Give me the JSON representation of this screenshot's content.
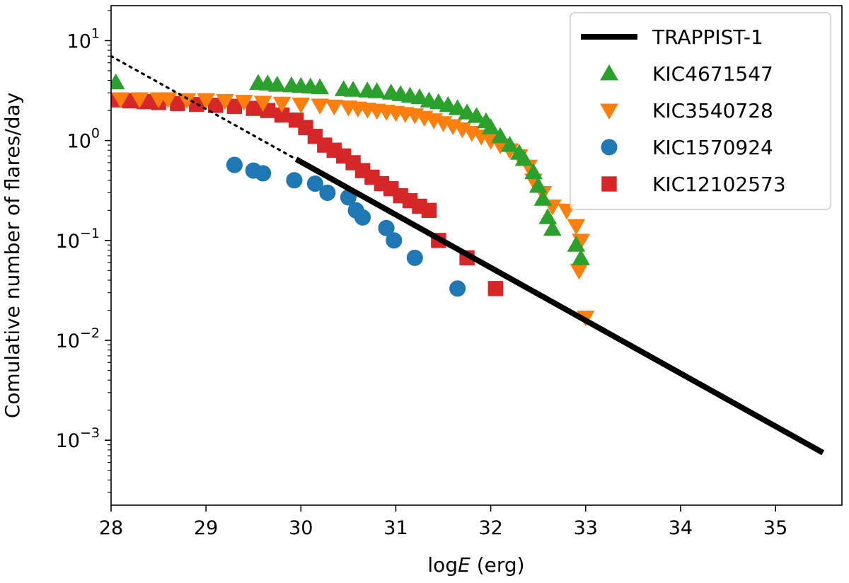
{
  "chart_data": {
    "type": "scatter",
    "title": "",
    "xlabel_prefix": "log",
    "xlabel_italic": "E",
    "xlabel_suffix": " (erg)",
    "ylabel": "Comulative number of flares/day",
    "xlim": [
      28,
      35.7
    ],
    "ylim_log10": [
      -3.65,
      1.35
    ],
    "yscale": "log",
    "x_ticks": [
      28,
      29,
      30,
      31,
      32,
      33,
      34,
      35
    ],
    "x_tick_labels": [
      "28",
      "29",
      "30",
      "31",
      "32",
      "33",
      "34",
      "35"
    ],
    "y_ticks_exp": [
      1,
      0,
      -1,
      -2,
      -3
    ],
    "y_tick_labels": [
      {
        "base": "10",
        "exp": "1"
      },
      {
        "base": "10",
        "exp": "0"
      },
      {
        "base": "10",
        "exp": "−1"
      },
      {
        "base": "10",
        "exp": "−2"
      },
      {
        "base": "10",
        "exp": "−3"
      }
    ],
    "legend_position": "top-right",
    "trappist_line": {
      "name": "TRAPPIST-1",
      "color": "#000000",
      "solid": [
        [
          29.95,
          0.65
        ],
        [
          35.5,
          0.00075
        ]
      ],
      "dotted": [
        [
          28.0,
          7.0
        ],
        [
          29.95,
          0.65
        ]
      ]
    },
    "series": [
      {
        "name": "KIC4671547",
        "marker": "triangle-up",
        "color": "#2ca02c",
        "points": [
          [
            28.05,
            3.8
          ],
          [
            29.55,
            3.75
          ],
          [
            29.65,
            3.7
          ],
          [
            29.75,
            3.6
          ],
          [
            29.9,
            3.55
          ],
          [
            30.0,
            3.5
          ],
          [
            30.1,
            3.45
          ],
          [
            30.2,
            3.4
          ],
          [
            30.45,
            3.25
          ],
          [
            30.55,
            3.2
          ],
          [
            30.7,
            3.15
          ],
          [
            30.8,
            3.1
          ],
          [
            30.95,
            3.0
          ],
          [
            31.05,
            2.9
          ],
          [
            31.15,
            2.8
          ],
          [
            31.25,
            2.7
          ],
          [
            31.35,
            2.5
          ],
          [
            31.45,
            2.4
          ],
          [
            31.55,
            2.25
          ],
          [
            31.65,
            2.1
          ],
          [
            31.75,
            1.9
          ],
          [
            31.85,
            1.75
          ],
          [
            31.95,
            1.55
          ],
          [
            32.0,
            1.35
          ],
          [
            32.1,
            1.1
          ],
          [
            32.2,
            0.9
          ],
          [
            32.3,
            0.75
          ],
          [
            32.35,
            0.65
          ],
          [
            32.45,
            0.48
          ],
          [
            32.5,
            0.35
          ],
          [
            32.55,
            0.26
          ],
          [
            32.6,
            0.17
          ],
          [
            32.65,
            0.13
          ],
          [
            32.9,
            0.09
          ],
          [
            32.95,
            0.066
          ]
        ]
      },
      {
        "name": "KIC3540728",
        "marker": "triangle-down",
        "color": "#ff7f0e",
        "points": [
          [
            28.1,
            2.6
          ],
          [
            28.3,
            2.6
          ],
          [
            28.5,
            2.6
          ],
          [
            28.6,
            2.6
          ],
          [
            28.8,
            2.55
          ],
          [
            29.0,
            2.55
          ],
          [
            29.2,
            2.5
          ],
          [
            29.4,
            2.45
          ],
          [
            29.6,
            2.4
          ],
          [
            29.8,
            2.35
          ],
          [
            30.0,
            2.3
          ],
          [
            30.2,
            2.25
          ],
          [
            30.35,
            2.2
          ],
          [
            30.5,
            2.15
          ],
          [
            30.6,
            2.1
          ],
          [
            30.7,
            2.05
          ],
          [
            30.8,
            2.0
          ],
          [
            30.9,
            1.95
          ],
          [
            31.0,
            1.9
          ],
          [
            31.1,
            1.85
          ],
          [
            31.2,
            1.8
          ],
          [
            31.3,
            1.7
          ],
          [
            31.4,
            1.6
          ],
          [
            31.5,
            1.5
          ],
          [
            31.6,
            1.4
          ],
          [
            31.7,
            1.3
          ],
          [
            31.8,
            1.2
          ],
          [
            31.9,
            1.1
          ],
          [
            32.0,
            1.0
          ],
          [
            32.1,
            0.9
          ],
          [
            32.2,
            0.8
          ],
          [
            32.3,
            0.7
          ],
          [
            32.4,
            0.55
          ],
          [
            32.45,
            0.4
          ],
          [
            32.55,
            0.3
          ],
          [
            32.65,
            0.22
          ],
          [
            32.8,
            0.2
          ],
          [
            32.9,
            0.14
          ],
          [
            32.95,
            0.1
          ],
          [
            32.93,
            0.05
          ],
          [
            33.0,
            0.017
          ]
        ]
      },
      {
        "name": "KIC1570924",
        "marker": "circle",
        "color": "#1f77b4",
        "points": [
          [
            29.3,
            0.57
          ],
          [
            29.5,
            0.5
          ],
          [
            29.6,
            0.47
          ],
          [
            29.93,
            0.4
          ],
          [
            30.15,
            0.37
          ],
          [
            30.28,
            0.3
          ],
          [
            30.5,
            0.27
          ],
          [
            30.58,
            0.2
          ],
          [
            30.65,
            0.17
          ],
          [
            30.9,
            0.133
          ],
          [
            30.98,
            0.1
          ],
          [
            31.2,
            0.067
          ],
          [
            31.65,
            0.033
          ]
        ]
      },
      {
        "name": "KIC12102573",
        "marker": "square",
        "color": "#d62728",
        "points": [
          [
            28.05,
            2.55
          ],
          [
            28.2,
            2.5
          ],
          [
            28.35,
            2.45
          ],
          [
            28.5,
            2.4
          ],
          [
            28.7,
            2.35
          ],
          [
            28.9,
            2.3
          ],
          [
            29.1,
            2.25
          ],
          [
            29.3,
            2.2
          ],
          [
            29.5,
            2.1
          ],
          [
            29.65,
            2.0
          ],
          [
            29.8,
            1.8
          ],
          [
            29.95,
            1.6
          ],
          [
            30.05,
            1.35
          ],
          [
            30.15,
            1.1
          ],
          [
            30.25,
            0.9
          ],
          [
            30.35,
            0.8
          ],
          [
            30.45,
            0.7
          ],
          [
            30.55,
            0.6
          ],
          [
            30.65,
            0.5
          ],
          [
            30.75,
            0.43
          ],
          [
            30.85,
            0.37
          ],
          [
            30.95,
            0.33
          ],
          [
            31.05,
            0.28
          ],
          [
            31.15,
            0.25
          ],
          [
            31.25,
            0.22
          ],
          [
            31.35,
            0.2
          ],
          [
            31.45,
            0.1
          ],
          [
            31.75,
            0.067
          ],
          [
            32.05,
            0.033
          ]
        ]
      }
    ]
  }
}
